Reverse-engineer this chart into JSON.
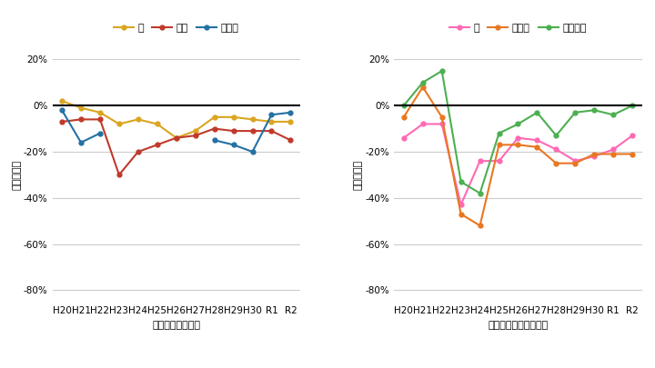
{
  "years": [
    "H20",
    "H21",
    "H22",
    "H23",
    "H24",
    "H25",
    "H26",
    "H27",
    "H28",
    "H29",
    "H30",
    "R1",
    "R2"
  ],
  "left_chart": {
    "kome": [
      2,
      -1,
      -3,
      -8,
      -6,
      -8,
      -14,
      -11,
      -5,
      -5,
      -6,
      -7,
      -7
    ],
    "gyuniku": [
      -7,
      -6,
      -6,
      -30,
      -20,
      -17,
      -14,
      -13,
      -10,
      -11,
      -11,
      -11,
      -15
    ],
    "hirame": [
      -2,
      -16,
      -12,
      null,
      null,
      null,
      null,
      null,
      -15,
      -17,
      -20,
      -4,
      -3
    ],
    "colors": {
      "kome": "#DAA520",
      "gyuniku": "#C0392B",
      "hirame": "#2471A3"
    },
    "ylabel": "価格の指数",
    "xlabel": "年度（米は産年）",
    "legend": [
      "米",
      "牛肉",
      "ヒラメ"
    ]
  },
  "right_chart": {
    "momo": [
      -14,
      -8,
      -8,
      -43,
      -24,
      -24,
      -14,
      -15,
      -19,
      -24,
      -22,
      -19,
      -13
    ],
    "hoshigaki": [
      -5,
      8,
      -5,
      -47,
      -52,
      -17,
      -17,
      -18,
      -25,
      -25,
      -21,
      -21,
      -21
    ],
    "piman": [
      0,
      10,
      15,
      -33,
      -38,
      -12,
      -8,
      -3,
      -13,
      -3,
      -2,
      -4,
      0
    ],
    "colors": {
      "momo": "#FF69B4",
      "hoshigaki": "#E87722",
      "piman": "#4CAF50"
    },
    "ylabel": "価格の指数",
    "xlabel": "年度（干し柿は産年）",
    "legend": [
      "桃",
      "干し柿",
      "ピーマン"
    ]
  },
  "ylim": [
    -85,
    25
  ],
  "yticks": [
    20,
    0,
    -20,
    -40,
    -60,
    -80
  ],
  "background_color": "#FFFFFF"
}
